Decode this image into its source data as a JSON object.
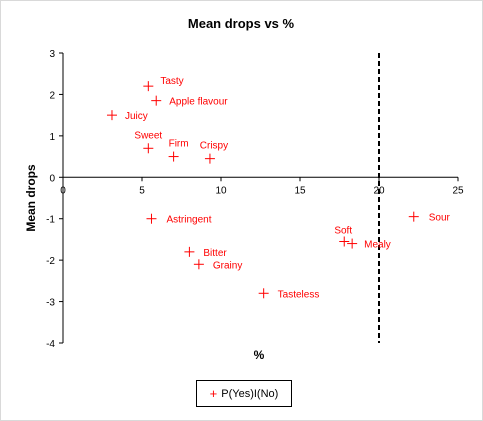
{
  "chart_data": {
    "type": "scatter",
    "title": "Mean drops vs %",
    "xlabel": "%",
    "ylabel": "Mean drops",
    "xlim": [
      0,
      25
    ],
    "ylim": [
      -4,
      3
    ],
    "xticks": [
      0,
      5,
      10,
      15,
      20,
      25
    ],
    "yticks": [
      3,
      2,
      1,
      0,
      -1,
      -2,
      -3,
      -4
    ],
    "grid": false,
    "legend_position": "bottom",
    "series": [
      {
        "name": "P(Yes)I(No)",
        "marker": "plus",
        "color": "#ff0000",
        "points": [
          {
            "label": "Tasty",
            "x": 5.4,
            "y": 2.2
          },
          {
            "label": "Apple flavour",
            "x": 5.9,
            "y": 1.85
          },
          {
            "label": "Juicy",
            "x": 3.1,
            "y": 1.5
          },
          {
            "label": "Sweet",
            "x": 5.4,
            "y": 0.7
          },
          {
            "label": "Firm",
            "x": 7.0,
            "y": 0.5
          },
          {
            "label": "Crispy",
            "x": 9.3,
            "y": 0.45
          },
          {
            "label": "Astringent",
            "x": 5.6,
            "y": -1.0
          },
          {
            "label": "Bitter",
            "x": 8.0,
            "y": -1.8
          },
          {
            "label": "Grainy",
            "x": 8.6,
            "y": -2.1
          },
          {
            "label": "Tasteless",
            "x": 12.7,
            "y": -2.8
          },
          {
            "label": "Soft",
            "x": 17.8,
            "y": -1.55
          },
          {
            "label": "Mealy",
            "x": 18.3,
            "y": -1.6
          },
          {
            "label": "Sour",
            "x": 22.2,
            "y": -0.95
          }
        ]
      }
    ],
    "reference_line": {
      "orientation": "vertical",
      "x": 20,
      "style": "dashed",
      "color": "#000000"
    }
  }
}
